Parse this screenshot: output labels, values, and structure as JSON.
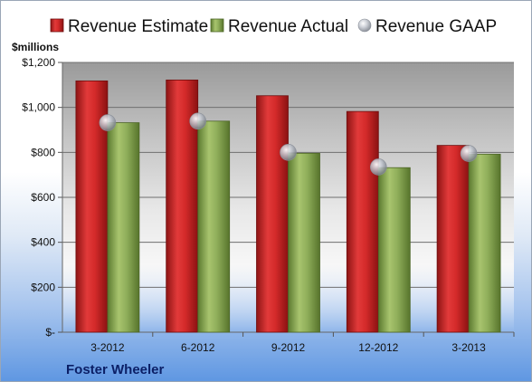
{
  "chart_data": {
    "type": "bar",
    "unit_label": "$millions",
    "company": "Foster Wheeler",
    "categories": [
      "3-2012",
      "6-2012",
      "9-2012",
      "12-2012",
      "3-2013"
    ],
    "series": [
      {
        "name": "Revenue Estimate",
        "kind": "bar",
        "color": "#d42a2a",
        "values": [
          1118,
          1122,
          1052,
          982,
          831
        ]
      },
      {
        "name": "Revenue Actual",
        "kind": "bar",
        "color": "#8fae5a",
        "values": [
          932,
          939,
          796,
          732,
          792
        ]
      },
      {
        "name": "Revenue GAAP",
        "kind": "marker",
        "color": "#c8ccd4",
        "values": [
          932,
          939,
          800,
          735,
          795
        ]
      }
    ],
    "ylim": [
      0,
      1200
    ],
    "yticks": [
      0,
      200,
      400,
      600,
      800,
      1000,
      1200
    ],
    "ytick_labels": [
      "$-",
      "$200",
      "$400",
      "$600",
      "$800",
      "$1,000",
      "$1,200"
    ],
    "grid": true,
    "legend_position": "top"
  }
}
